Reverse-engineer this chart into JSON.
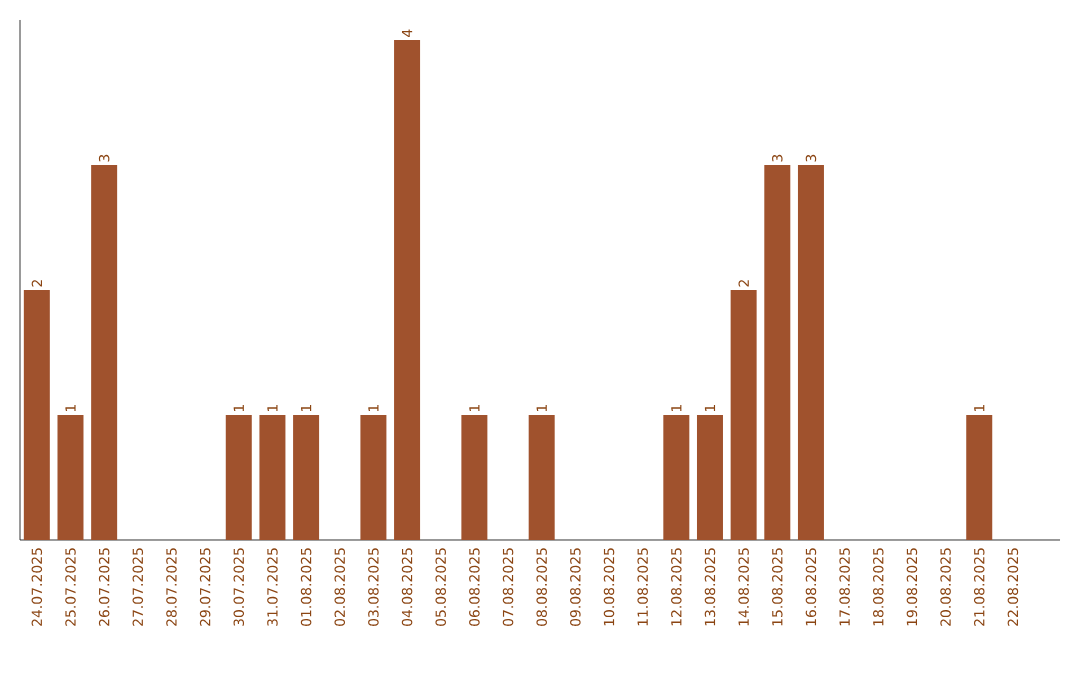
{
  "chart_data": {
    "type": "bar",
    "color": "#a0522d",
    "categories": [
      "24.07.2025",
      "25.07.2025",
      "26.07.2025",
      "27.07.2025",
      "28.07.2025",
      "29.07.2025",
      "30.07.2025",
      "31.07.2025",
      "01.08.2025",
      "02.08.2025",
      "03.08.2025",
      "04.08.2025",
      "05.08.2025",
      "06.08.2025",
      "07.08.2025",
      "08.08.2025",
      "09.08.2025",
      "10.08.2025",
      "11.08.2025",
      "12.08.2025",
      "13.08.2025",
      "14.08.2025",
      "15.08.2025",
      "16.08.2025",
      "17.08.2025",
      "18.08.2025",
      "19.08.2025",
      "20.08.2025",
      "21.08.2025",
      "22.08.2025"
    ],
    "values": [
      2,
      1,
      3,
      0,
      0,
      0,
      1,
      1,
      1,
      0,
      1,
      4,
      0,
      1,
      0,
      1,
      0,
      0,
      0,
      1,
      1,
      2,
      3,
      3,
      0,
      0,
      0,
      0,
      1,
      0
    ],
    "value_labels": [
      "2",
      "1",
      "3",
      null,
      null,
      null,
      "1",
      "1",
      "1",
      null,
      "1",
      "4",
      null,
      "1",
      null,
      "1",
      null,
      null,
      null,
      "1",
      "1",
      "2",
      "3",
      "3",
      null,
      null,
      null,
      null,
      "1",
      null
    ]
  }
}
